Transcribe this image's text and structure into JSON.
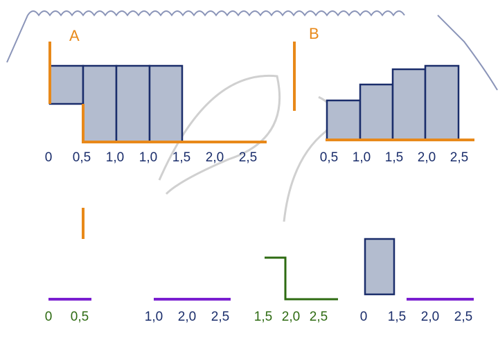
{
  "panels": [
    {
      "label": "A",
      "ticks": [
        "0",
        "0,5",
        "1,0",
        "1,0",
        "1,5",
        "2,0",
        "2,5"
      ]
    },
    {
      "label": "B",
      "ticks": [
        "0,5",
        "1,0",
        "1,5",
        "2,0",
        "2,5"
      ]
    }
  ],
  "bottom_fragments": [
    {
      "ticks": [
        "0",
        "0,5"
      ]
    },
    {
      "ticks": [
        "1,0",
        "2,0",
        "2,5"
      ]
    },
    {
      "ticks": [
        "1,5",
        "2,0",
        "2,5"
      ]
    },
    {
      "ticks": [
        "0",
        "1,5",
        "2,0",
        "2,5"
      ]
    }
  ]
}
